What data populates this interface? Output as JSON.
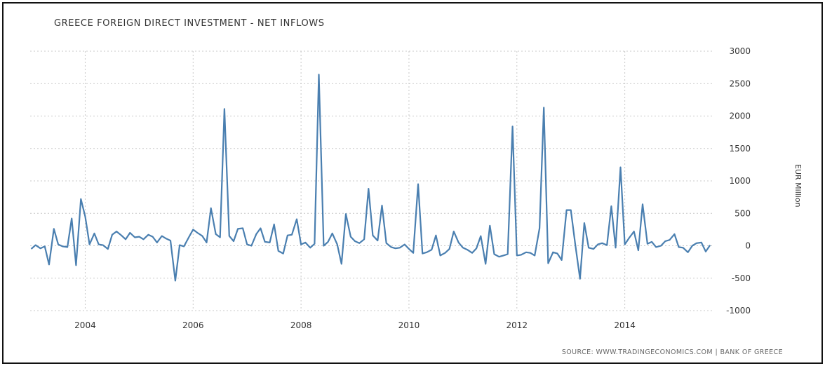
{
  "chart_data": {
    "type": "line",
    "title": "GREECE FOREIGN DIRECT INVESTMENT - NET INFLOWS",
    "ylabel": "EUR Million",
    "source": "SOURCE: WWW.TRADINGECONOMICS.COM | BANK OF GREECE",
    "ylim": [
      -1000,
      3000
    ],
    "xlim": [
      2002.98,
      2015.63
    ],
    "y_ticks": [
      "3000",
      "2500",
      "2000",
      "1500",
      "1000",
      "500",
      "0",
      "-500",
      "-1000"
    ],
    "x_ticks": [
      "2004",
      "2006",
      "2008",
      "2010",
      "2012",
      "2014"
    ],
    "grid": "vertical dashed per year tick; horizontal at y ticks",
    "line_color": "#4a7fb0",
    "series": [
      {
        "values": [
          [
            2003.0,
            -50
          ],
          [
            2003.08,
            10
          ],
          [
            2003.17,
            -40
          ],
          [
            2003.25,
            -10
          ],
          [
            2003.33,
            -290
          ],
          [
            2003.42,
            260
          ],
          [
            2003.5,
            20
          ],
          [
            2003.58,
            -10
          ],
          [
            2003.67,
            -20
          ],
          [
            2003.75,
            420
          ],
          [
            2003.83,
            -300
          ],
          [
            2003.92,
            720
          ],
          [
            2004.0,
            450
          ],
          [
            2004.08,
            20
          ],
          [
            2004.17,
            190
          ],
          [
            2004.25,
            20
          ],
          [
            2004.33,
            10
          ],
          [
            2004.42,
            -50
          ],
          [
            2004.5,
            170
          ],
          [
            2004.58,
            220
          ],
          [
            2004.67,
            160
          ],
          [
            2004.75,
            100
          ],
          [
            2004.83,
            200
          ],
          [
            2004.92,
            130
          ],
          [
            2005.0,
            140
          ],
          [
            2005.08,
            100
          ],
          [
            2005.17,
            170
          ],
          [
            2005.25,
            140
          ],
          [
            2005.33,
            50
          ],
          [
            2005.42,
            150
          ],
          [
            2005.5,
            110
          ],
          [
            2005.58,
            80
          ],
          [
            2005.67,
            -540
          ],
          [
            2005.75,
            10
          ],
          [
            2005.83,
            -10
          ],
          [
            2005.92,
            130
          ],
          [
            2006.0,
            250
          ],
          [
            2006.08,
            200
          ],
          [
            2006.17,
            150
          ],
          [
            2006.25,
            50
          ],
          [
            2006.33,
            580
          ],
          [
            2006.42,
            180
          ],
          [
            2006.5,
            130
          ],
          [
            2006.58,
            2110
          ],
          [
            2006.67,
            150
          ],
          [
            2006.75,
            70
          ],
          [
            2006.83,
            260
          ],
          [
            2006.92,
            270
          ],
          [
            2007.0,
            20
          ],
          [
            2007.08,
            0
          ],
          [
            2007.17,
            180
          ],
          [
            2007.25,
            270
          ],
          [
            2007.33,
            60
          ],
          [
            2007.42,
            50
          ],
          [
            2007.5,
            330
          ],
          [
            2007.58,
            -80
          ],
          [
            2007.67,
            -120
          ],
          [
            2007.75,
            160
          ],
          [
            2007.83,
            170
          ],
          [
            2007.92,
            410
          ],
          [
            2008.0,
            20
          ],
          [
            2008.08,
            50
          ],
          [
            2008.17,
            -30
          ],
          [
            2008.25,
            30
          ],
          [
            2008.33,
            2640
          ],
          [
            2008.42,
            0
          ],
          [
            2008.5,
            60
          ],
          [
            2008.58,
            190
          ],
          [
            2008.67,
            20
          ],
          [
            2008.75,
            -280
          ],
          [
            2008.83,
            490
          ],
          [
            2008.92,
            140
          ],
          [
            2009.0,
            70
          ],
          [
            2009.08,
            40
          ],
          [
            2009.17,
            100
          ],
          [
            2009.25,
            880
          ],
          [
            2009.33,
            160
          ],
          [
            2009.42,
            80
          ],
          [
            2009.5,
            620
          ],
          [
            2009.58,
            40
          ],
          [
            2009.67,
            -20
          ],
          [
            2009.75,
            -40
          ],
          [
            2009.83,
            -30
          ],
          [
            2009.92,
            20
          ],
          [
            2010.0,
            -50
          ],
          [
            2010.08,
            -110
          ],
          [
            2010.17,
            950
          ],
          [
            2010.25,
            -120
          ],
          [
            2010.33,
            -100
          ],
          [
            2010.42,
            -60
          ],
          [
            2010.5,
            160
          ],
          [
            2010.58,
            -150
          ],
          [
            2010.67,
            -110
          ],
          [
            2010.75,
            -50
          ],
          [
            2010.83,
            220
          ],
          [
            2010.92,
            50
          ],
          [
            2011.0,
            -30
          ],
          [
            2011.08,
            -60
          ],
          [
            2011.17,
            -110
          ],
          [
            2011.25,
            -40
          ],
          [
            2011.33,
            150
          ],
          [
            2011.42,
            -280
          ],
          [
            2011.5,
            310
          ],
          [
            2011.58,
            -130
          ],
          [
            2011.67,
            -170
          ],
          [
            2011.75,
            -150
          ],
          [
            2011.83,
            -130
          ],
          [
            2011.92,
            1840
          ],
          [
            2012.0,
            -150
          ],
          [
            2012.08,
            -140
          ],
          [
            2012.17,
            -100
          ],
          [
            2012.25,
            -110
          ],
          [
            2012.33,
            -150
          ],
          [
            2012.42,
            270
          ],
          [
            2012.5,
            2130
          ],
          [
            2012.58,
            -270
          ],
          [
            2012.67,
            -100
          ],
          [
            2012.75,
            -120
          ],
          [
            2012.83,
            -220
          ],
          [
            2012.92,
            550
          ],
          [
            2013.0,
            550
          ],
          [
            2013.08,
            30
          ],
          [
            2013.17,
            -510
          ],
          [
            2013.25,
            350
          ],
          [
            2013.33,
            -30
          ],
          [
            2013.42,
            -50
          ],
          [
            2013.5,
            20
          ],
          [
            2013.58,
            40
          ],
          [
            2013.67,
            10
          ],
          [
            2013.75,
            610
          ],
          [
            2013.83,
            -30
          ],
          [
            2013.92,
            1210
          ],
          [
            2014.0,
            20
          ],
          [
            2014.08,
            120
          ],
          [
            2014.17,
            220
          ],
          [
            2014.25,
            -70
          ],
          [
            2014.33,
            640
          ],
          [
            2014.42,
            30
          ],
          [
            2014.5,
            60
          ],
          [
            2014.58,
            -20
          ],
          [
            2014.67,
            0
          ],
          [
            2014.75,
            70
          ],
          [
            2014.83,
            90
          ],
          [
            2014.92,
            180
          ],
          [
            2015.0,
            -20
          ],
          [
            2015.08,
            -30
          ],
          [
            2015.17,
            -100
          ],
          [
            2015.25,
            0
          ],
          [
            2015.33,
            40
          ],
          [
            2015.42,
            50
          ],
          [
            2015.5,
            -90
          ],
          [
            2015.58,
            10
          ]
        ]
      }
    ]
  }
}
